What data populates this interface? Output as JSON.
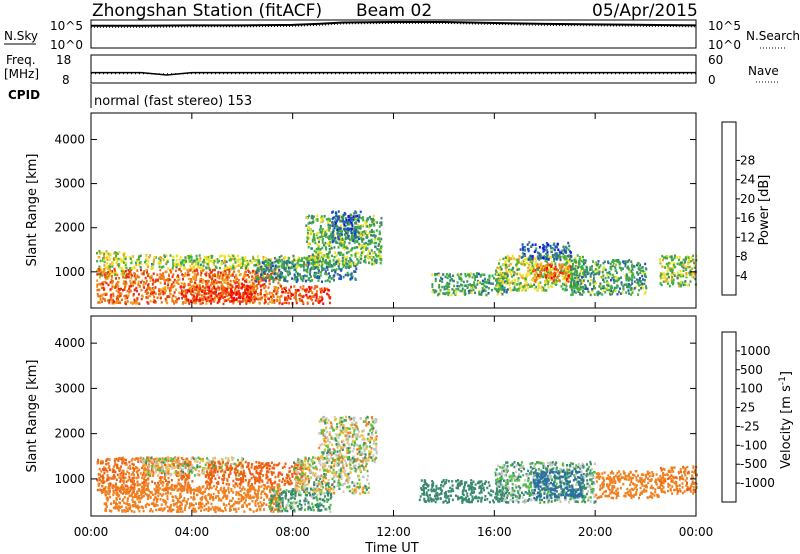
{
  "header": {
    "title": "Zhongshan Station (fitACF)",
    "beam": "Beam 02",
    "date": "05/Apr/2015"
  },
  "nsky_panel": {
    "left_label": "N.Sky",
    "left_ticks": [
      "10^5",
      "10^0"
    ],
    "right_ticks": [
      "10^5",
      "10^0"
    ],
    "right_label": "N.Search",
    "right_legend_style": "dotted"
  },
  "freq_panel": {
    "left_label_1": "Freq.",
    "left_label_2": "[MHz]",
    "left_ticks": [
      "18",
      "8"
    ],
    "right_ticks": [
      "60",
      "0"
    ],
    "right_label": "Nave",
    "right_legend_style": "dotted"
  },
  "cpid": {
    "label": "CPID",
    "value": "normal (fast stereo) 153"
  },
  "power_panel": {
    "ylabel": "Slant Range [km]",
    "yticks": [
      "1000",
      "2000",
      "3000",
      "4000"
    ],
    "colorbar_title": "Power [dB]",
    "colorbar_ticks": [
      "4",
      "8",
      "12",
      "16",
      "20",
      "24",
      "28"
    ],
    "colorbar_colors": [
      "#1010f0",
      "#2050c0",
      "#3a8a70",
      "#40b040",
      "#f0e020",
      "#f0a020",
      "#f07010",
      "#e83010",
      "#ff0000"
    ]
  },
  "velocity_panel": {
    "ylabel": "Slant Range [km]",
    "yticks": [
      "1000",
      "2000",
      "3000",
      "4000"
    ],
    "colorbar_title": "Velocity [m s",
    "colorbar_title_sup": "-1",
    "colorbar_title_end": "]",
    "colorbar_ticks": [
      "1000",
      "500",
      "100",
      "25",
      "-25",
      "-100",
      "-500",
      "-1000"
    ],
    "colorbar_colors": [
      "#2040c0",
      "#2a70a0",
      "#3a8a70",
      "#50c040",
      "#c8c8c0",
      "#f0c040",
      "#f08020",
      "#f06010",
      "#e02010"
    ]
  },
  "x_axis": {
    "xlabel": "Time UT",
    "ticks": [
      "00:00",
      "04:00",
      "08:00",
      "12:00",
      "16:00",
      "20:00",
      "00:00"
    ]
  },
  "chart_data": [
    {
      "type": "line",
      "title": "N.Sky / N.Search",
      "x_unit": "hours UT",
      "x": [
        0,
        2,
        4,
        6,
        8,
        9,
        10,
        12,
        14,
        16,
        18,
        20,
        22,
        24
      ],
      "series": [
        {
          "name": "N.Sky",
          "values_log10": [
            4.2,
            4.2,
            4.3,
            4.3,
            4.4,
            4.6,
            4.9,
            5.0,
            5.0,
            4.8,
            4.6,
            4.5,
            4.4,
            4.3
          ]
        },
        {
          "name": "N.Search",
          "values_log10": [
            3.9,
            3.9,
            4.0,
            4.0,
            4.1,
            4.3,
            4.6,
            4.7,
            4.7,
            4.5,
            4.3,
            4.2,
            4.1,
            4.0
          ]
        }
      ],
      "ylim_log10": [
        0,
        5
      ]
    },
    {
      "type": "line",
      "title": "Freq / Nave",
      "x_unit": "hours UT",
      "x": [
        0,
        2,
        3,
        4,
        6,
        12,
        18,
        24
      ],
      "series": [
        {
          "name": "Freq",
          "unit": "MHz",
          "values": [
            11.5,
            11.5,
            10.5,
            11.5,
            11.5,
            11.5,
            11.5,
            11.5
          ]
        },
        {
          "name": "Nave",
          "values": [
            18,
            18,
            18,
            18,
            18,
            18,
            18,
            18
          ]
        }
      ],
      "ylim_freq": [
        8,
        18
      ],
      "ylim_nave": [
        0,
        60
      ]
    },
    {
      "type": "heatmap",
      "title": "Power [dB]",
      "xlabel": "Time UT",
      "ylabel": "Slant Range [km]",
      "xlim_hours": [
        0,
        24
      ],
      "ylim_km": [
        180,
        4600
      ],
      "zlim": [
        0,
        30
      ],
      "regions": [
        {
          "t0": 0.2,
          "t1": 1.4,
          "r0": 900,
          "r1": 1500,
          "value": 15
        },
        {
          "t0": 0.2,
          "t1": 7.5,
          "r0": 300,
          "r1": 1100,
          "value": 24
        },
        {
          "t0": 3.5,
          "t1": 6.5,
          "r0": 350,
          "r1": 700,
          "value": 28
        },
        {
          "t0": 1.5,
          "t1": 9.0,
          "r0": 1100,
          "r1": 1400,
          "value": 14
        },
        {
          "t0": 6.5,
          "t1": 10.5,
          "r0": 800,
          "r1": 1300,
          "value": 8
        },
        {
          "t0": 7.5,
          "t1": 9.5,
          "r0": 300,
          "r1": 700,
          "value": 27
        },
        {
          "t0": 8.5,
          "t1": 11.5,
          "r0": 1200,
          "r1": 2300,
          "value": 12
        },
        {
          "t0": 9.5,
          "t1": 10.7,
          "r0": 1700,
          "r1": 2400,
          "value": 6
        },
        {
          "t0": 13.5,
          "t1": 16.5,
          "r0": 500,
          "r1": 1000,
          "value": 10
        },
        {
          "t0": 16.0,
          "t1": 19.5,
          "r0": 600,
          "r1": 1400,
          "value": 14
        },
        {
          "t0": 17.5,
          "t1": 19.0,
          "r0": 800,
          "r1": 1200,
          "value": 25
        },
        {
          "t0": 19.0,
          "t1": 22.0,
          "r0": 500,
          "r1": 1300,
          "value": 10
        },
        {
          "t0": 17.0,
          "t1": 19.0,
          "r0": 1300,
          "r1": 1700,
          "value": 6
        },
        {
          "t0": 22.5,
          "t1": 24.0,
          "r0": 700,
          "r1": 1400,
          "value": 14
        }
      ]
    },
    {
      "type": "heatmap",
      "title": "Velocity [m s-1]",
      "xlabel": "Time UT",
      "ylabel": "Slant Range [km]",
      "xlim_hours": [
        0,
        24
      ],
      "ylim_km": [
        180,
        4600
      ],
      "zlim": [
        -1000,
        1000
      ],
      "regions": [
        {
          "t0": 0.2,
          "t1": 4.0,
          "r0": 700,
          "r1": 1500,
          "value": -300
        },
        {
          "t0": 0.5,
          "t1": 7.5,
          "r0": 300,
          "r1": 900,
          "value": -200
        },
        {
          "t0": 2.0,
          "t1": 6.0,
          "r0": 1100,
          "r1": 1500,
          "value": 0
        },
        {
          "t0": 4.5,
          "t1": 8.5,
          "r0": 900,
          "r1": 1400,
          "value": -400
        },
        {
          "t0": 7.0,
          "t1": 9.5,
          "r0": 300,
          "r1": 800,
          "value": 80
        },
        {
          "t0": 8.0,
          "t1": 11.0,
          "r0": 700,
          "r1": 1500,
          "value": 0
        },
        {
          "t0": 9.0,
          "t1": 11.3,
          "r0": 1400,
          "r1": 2400,
          "value": 0
        },
        {
          "t0": 13.0,
          "t1": 16.5,
          "r0": 500,
          "r1": 1000,
          "value": 150
        },
        {
          "t0": 16.0,
          "t1": 20.0,
          "r0": 500,
          "r1": 1400,
          "value": 60
        },
        {
          "t0": 17.5,
          "t1": 19.5,
          "r0": 600,
          "r1": 1200,
          "value": 400
        },
        {
          "t0": 20.0,
          "t1": 22.5,
          "r0": 600,
          "r1": 1200,
          "value": -150
        },
        {
          "t0": 22.5,
          "t1": 24.0,
          "r0": 700,
          "r1": 1300,
          "value": -250
        }
      ]
    }
  ]
}
